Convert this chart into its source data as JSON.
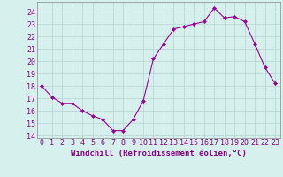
{
  "x": [
    0,
    1,
    2,
    3,
    4,
    5,
    6,
    7,
    8,
    9,
    10,
    11,
    12,
    13,
    14,
    15,
    16,
    17,
    18,
    19,
    20,
    21,
    22,
    23
  ],
  "y": [
    18.0,
    17.1,
    16.6,
    16.6,
    16.0,
    15.6,
    15.3,
    14.4,
    14.4,
    15.3,
    16.8,
    20.2,
    21.4,
    22.6,
    22.8,
    23.0,
    23.2,
    24.3,
    23.5,
    23.6,
    23.2,
    21.4,
    19.5,
    18.2
  ],
  "line_color": "#990099",
  "marker": "D",
  "marker_size": 2.0,
  "bg_color": "#d6f0ee",
  "grid_color": "#b8d8d6",
  "xlabel": "Windchill (Refroidissement éolien,°C)",
  "xlim": [
    -0.5,
    23.5
  ],
  "ylim": [
    13.8,
    24.8
  ],
  "yticks": [
    14,
    15,
    16,
    17,
    18,
    19,
    20,
    21,
    22,
    23,
    24
  ],
  "xticks": [
    0,
    1,
    2,
    3,
    4,
    5,
    6,
    7,
    8,
    9,
    10,
    11,
    12,
    13,
    14,
    15,
    16,
    17,
    18,
    19,
    20,
    21,
    22,
    23
  ],
  "tick_label_color": "#880088",
  "tick_label_fontsize": 6,
  "xlabel_fontsize": 6.5,
  "spine_color": "#888888"
}
